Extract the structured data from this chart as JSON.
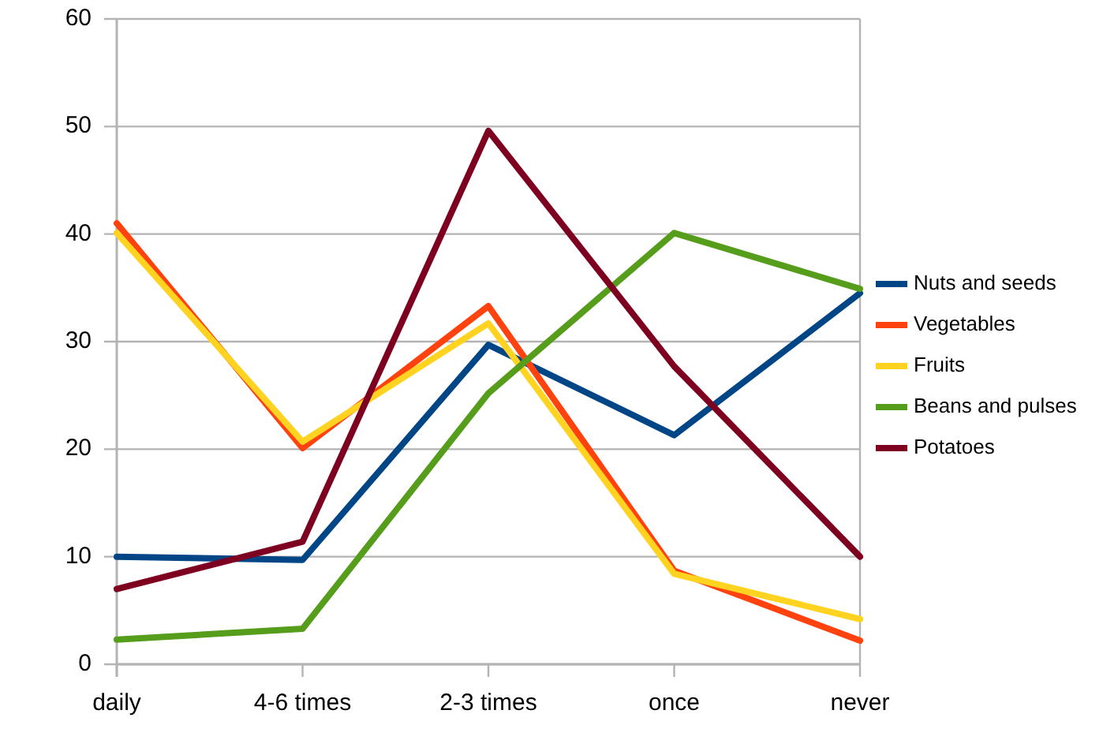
{
  "chart_data": {
    "type": "line",
    "categories": [
      "daily",
      "4-6 times",
      "2-3 times",
      "once",
      "never"
    ],
    "series": [
      {
        "name": "Nuts and seeds",
        "color": "#004586",
        "values": [
          10,
          9.7,
          29.7,
          21.3,
          34.5
        ]
      },
      {
        "name": "Vegetables",
        "color": "#ff420e",
        "values": [
          41,
          20.1,
          33.3,
          8.7,
          2.2
        ]
      },
      {
        "name": "Fruits",
        "color": "#ffd320",
        "values": [
          40.1,
          20.7,
          31.7,
          8.4,
          4.2
        ]
      },
      {
        "name": "Beans and pulses",
        "color": "#579d1c",
        "values": [
          2.3,
          3.3,
          25.2,
          40.1,
          34.9
        ]
      },
      {
        "name": "Potatoes",
        "color": "#7e0021",
        "values": [
          7,
          11.4,
          49.6,
          27.7,
          10
        ]
      }
    ],
    "ylim": [
      0,
      60
    ],
    "yticks": [
      0,
      10,
      20,
      30,
      40,
      50,
      60
    ],
    "grid": "y",
    "legend": "right",
    "marker": "none",
    "line_style": "solid"
  }
}
